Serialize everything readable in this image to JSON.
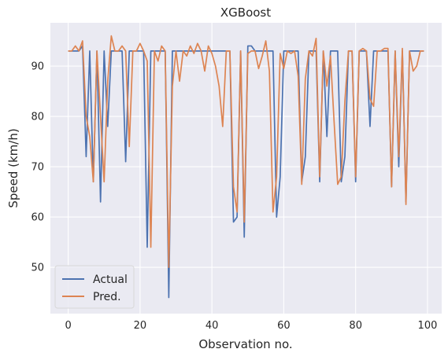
{
  "chart_data": {
    "type": "line",
    "title": "XGBoost",
    "xlabel": "Observation no.",
    "ylabel": "Speed (km/h)",
    "xlim": [
      -4.95,
      103.95
    ],
    "ylim": [
      40.8,
      98.6
    ],
    "xticks": [
      0,
      20,
      40,
      60,
      80,
      100
    ],
    "yticks": [
      50,
      60,
      70,
      80,
      90
    ],
    "grid": true,
    "legend": "lower-left",
    "background": "#eaeaf2",
    "series": [
      {
        "name": "Actual",
        "color": "#4c72b0",
        "values": [
          93,
          93,
          93,
          93,
          94,
          72,
          93,
          67,
          93,
          63,
          93,
          78,
          93,
          93,
          93,
          93,
          71,
          93,
          93,
          93,
          93,
          93,
          54,
          93,
          93,
          93,
          93,
          93,
          44,
          93,
          93,
          93,
          93,
          93,
          93,
          93,
          93,
          93,
          93,
          93,
          93,
          93,
          93,
          93,
          93,
          93,
          59,
          60,
          93,
          56,
          94,
          94,
          93,
          93,
          93,
          93,
          93,
          93,
          60,
          68,
          93,
          93,
          93,
          93,
          93,
          67,
          72,
          93,
          93,
          93,
          67,
          93,
          76,
          93,
          93,
          93,
          67,
          72,
          93,
          93,
          67,
          93,
          93,
          93,
          78,
          93,
          93,
          93,
          93,
          93,
          66,
          93,
          70,
          93,
          63,
          93,
          93,
          93,
          93,
          93
        ]
      },
      {
        "name": "Pred.",
        "color": "#dd8452",
        "values": [
          93,
          93,
          94,
          93,
          95,
          80,
          76,
          67,
          93,
          80,
          67,
          87,
          96,
          93,
          93,
          94,
          93,
          74,
          93,
          93,
          94.5,
          93,
          91,
          54,
          93,
          91,
          94,
          93,
          50,
          86,
          93,
          87,
          93,
          92,
          94,
          92.5,
          94.5,
          93,
          89,
          94,
          92.5,
          90,
          86,
          78,
          93,
          93,
          66,
          61,
          93,
          59,
          92.5,
          93,
          93,
          89.5,
          92,
          95,
          89,
          61,
          68,
          92.5,
          89.5,
          93,
          92.5,
          93,
          88,
          66.5,
          87.5,
          93,
          92,
          95.5,
          68,
          93,
          86,
          92,
          79,
          66.5,
          68,
          83,
          93,
          93,
          68,
          93,
          93.5,
          93,
          83.5,
          82,
          93,
          93,
          93.5,
          93.5,
          66,
          93,
          72,
          93.5,
          62.5,
          93,
          89,
          90,
          93,
          93
        ]
      }
    ]
  }
}
